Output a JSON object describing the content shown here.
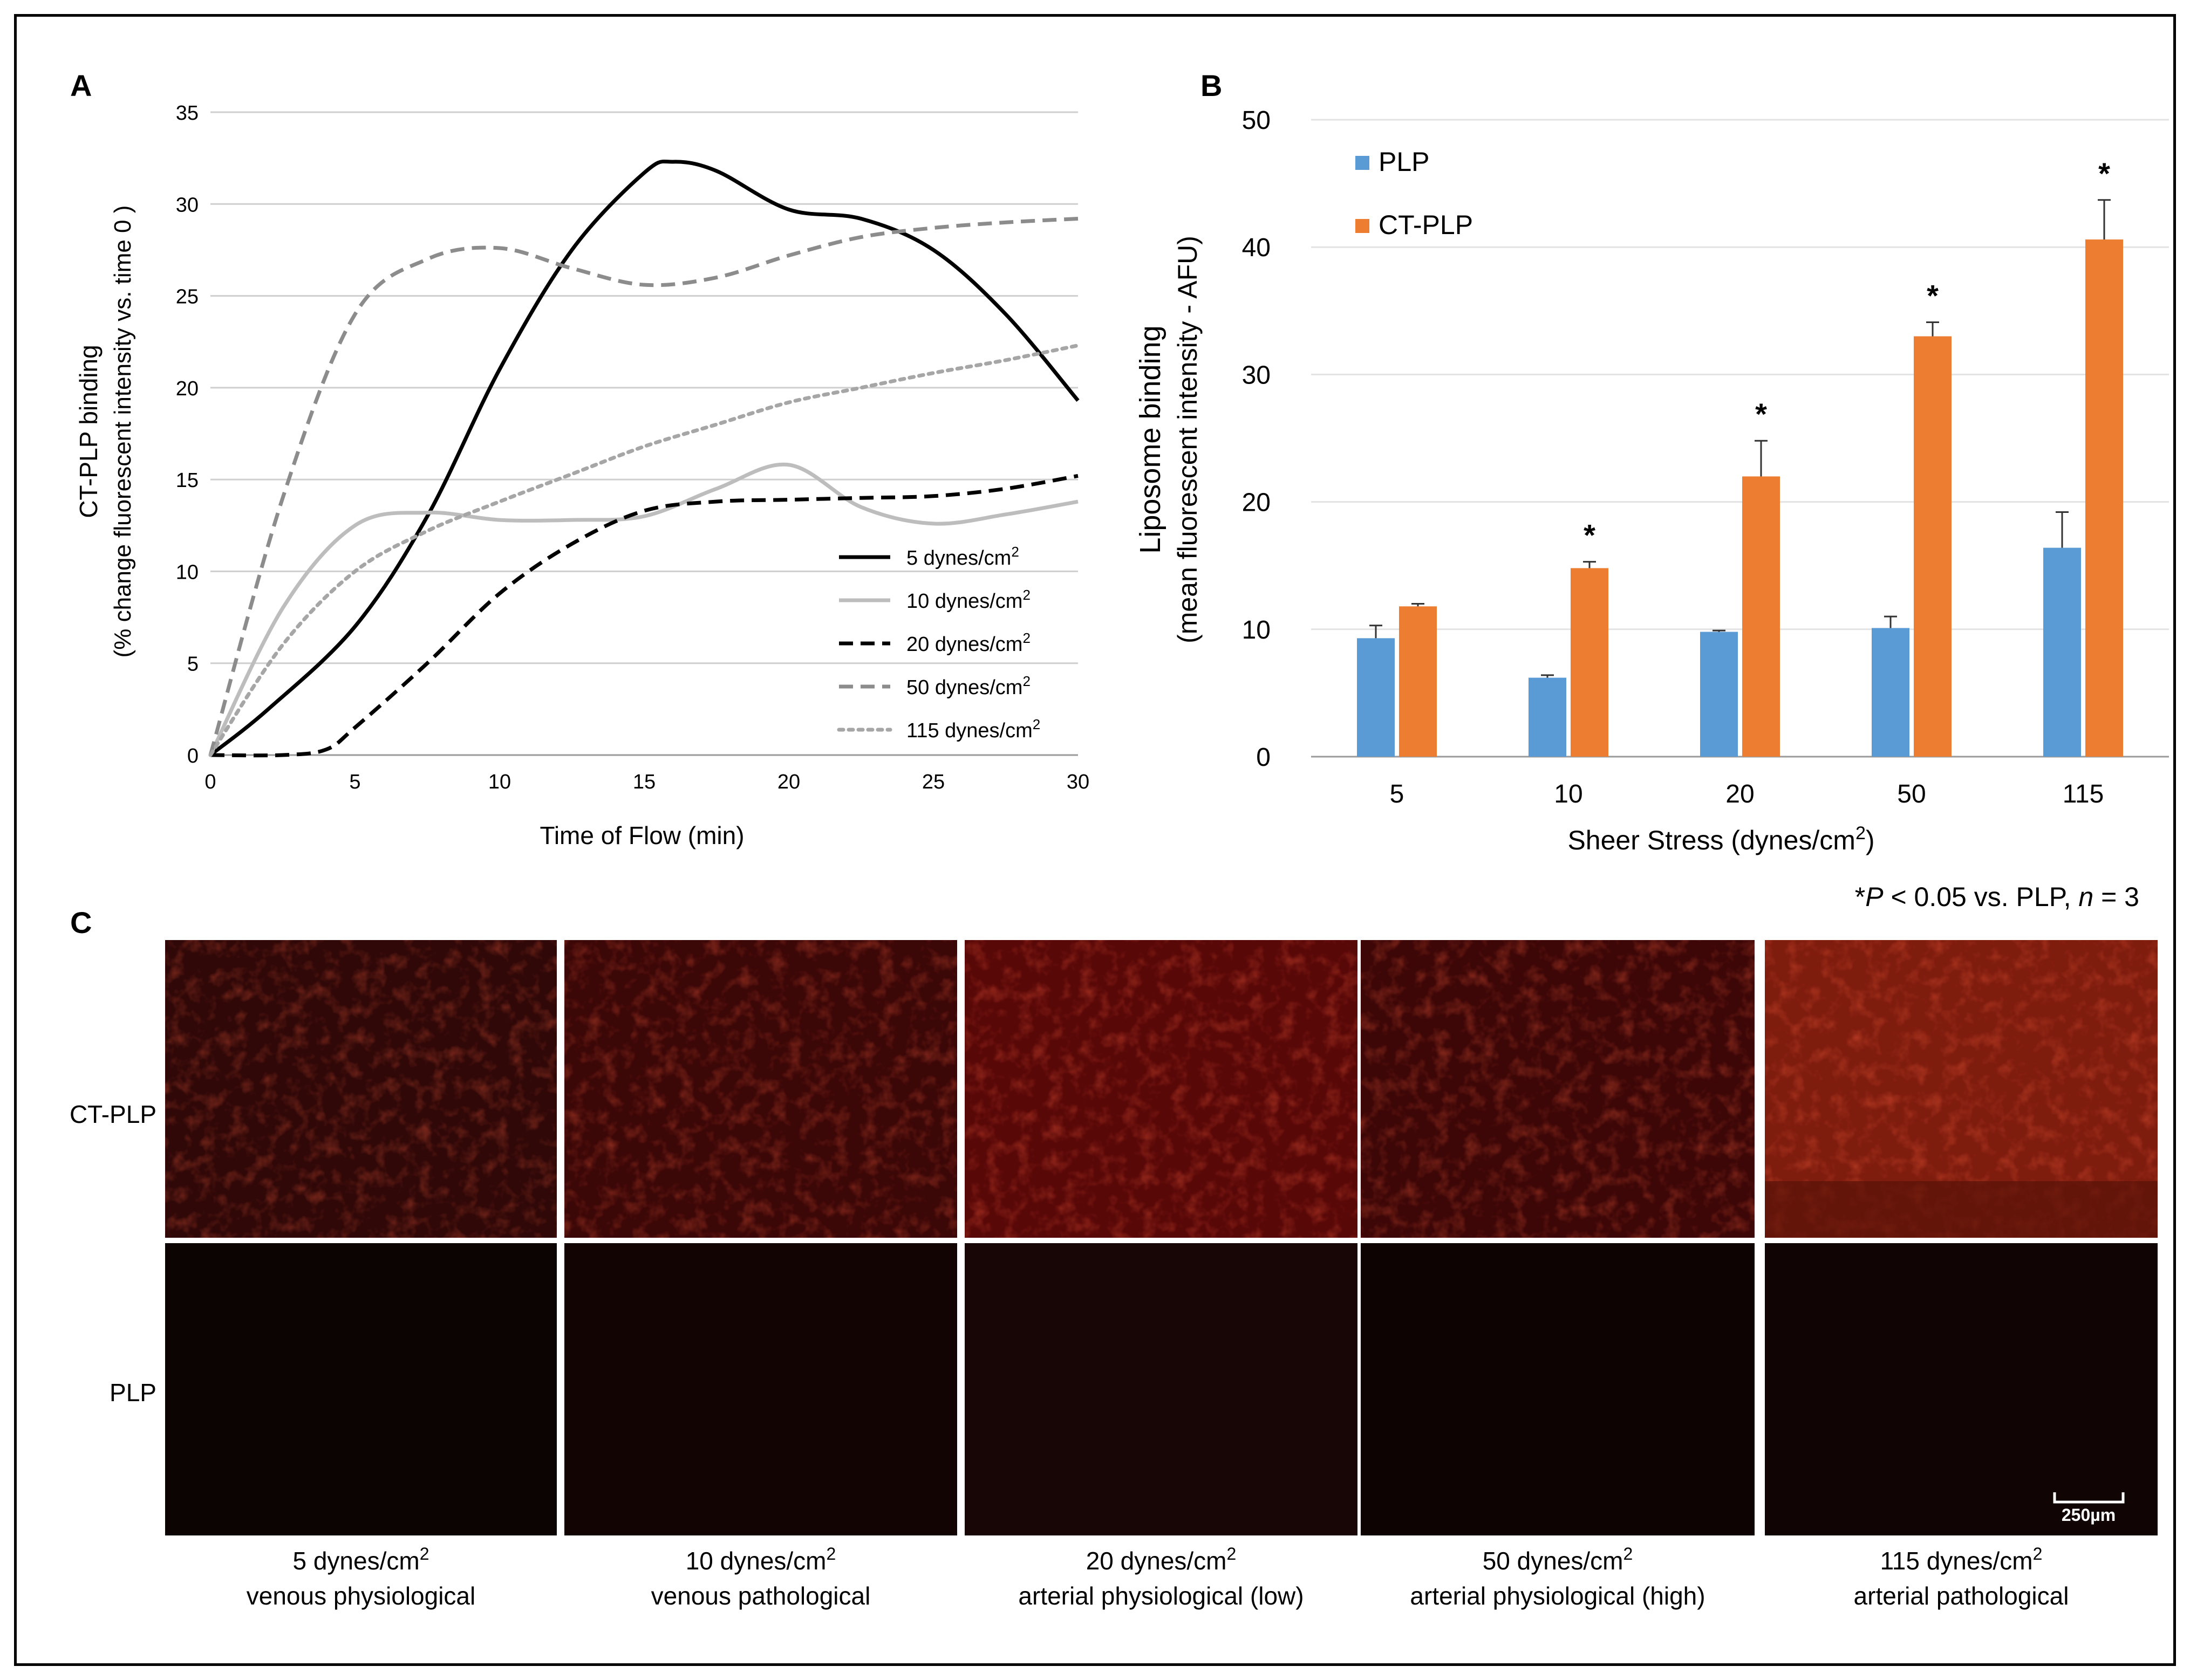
{
  "panel_labels": {
    "a": "A",
    "b": "B",
    "c": "C"
  },
  "chart_data": [
    {
      "panel": "A",
      "type": "line",
      "ylabel_line1": "CT-PLP binding",
      "ylabel_line2": "(% change fluorescent intensity vs. time 0 )",
      "xlabel": "Time of Flow (min)",
      "xlim": [
        0,
        30
      ],
      "ylim": [
        0,
        35
      ],
      "xticks": [
        "0",
        "5",
        "10",
        "15",
        "20",
        "25",
        "30"
      ],
      "yticks": [
        "0",
        "5",
        "10",
        "15",
        "20",
        "25",
        "30",
        "35"
      ],
      "grid": true,
      "legend_position": "bottom-right",
      "legend_unit_superscript": "2",
      "series": [
        {
          "name": "5 dynes/cm",
          "color": "#000000",
          "dash": "solid",
          "x": [
            0,
            2,
            5,
            7.5,
            10,
            12.5,
            15,
            16,
            17.5,
            20,
            22.5,
            25,
            27.5,
            30
          ],
          "y": [
            0,
            2.5,
            7,
            13,
            21,
            27.5,
            31.7,
            32.3,
            31.8,
            29.7,
            29.2,
            27.5,
            24,
            19.3
          ]
        },
        {
          "name": "10 dynes/cm",
          "color": "#bdbdbd",
          "dash": "solid",
          "x": [
            0,
            2.5,
            5,
            7.5,
            10,
            12.5,
            15,
            17.5,
            20,
            22.5,
            25,
            27.5,
            30
          ],
          "y": [
            0,
            8,
            12.5,
            13.2,
            12.8,
            12.8,
            13,
            14.5,
            15.8,
            13.5,
            12.6,
            13.1,
            13.8
          ]
        },
        {
          "name": "20 dynes/cm",
          "color": "#000000",
          "dash": "dashed",
          "x": [
            0,
            2.5,
            4,
            5,
            7.5,
            10,
            12.5,
            15,
            17.5,
            20,
            22.5,
            25,
            27.5,
            30
          ],
          "y": [
            0,
            0,
            0.3,
            1.5,
            5,
            8.8,
            11.5,
            13.3,
            13.8,
            13.9,
            14,
            14.1,
            14.5,
            15.2
          ]
        },
        {
          "name": "50 dynes/cm",
          "color": "#8c8c8c",
          "dash": "dashed",
          "x": [
            0,
            2.5,
            5,
            7.5,
            10,
            12.5,
            15,
            17.5,
            20,
            22.5,
            25,
            27.5,
            30
          ],
          "y": [
            0,
            14,
            24,
            27,
            27.6,
            26.5,
            25.6,
            26,
            27.2,
            28.2,
            28.7,
            29,
            29.2
          ]
        },
        {
          "name": "115 dynes/cm",
          "color": "#a6a6a6",
          "dash": "dotted",
          "x": [
            0,
            2.5,
            5,
            7.5,
            10,
            12.5,
            15,
            17.5,
            20,
            22.5,
            25,
            27.5,
            30
          ],
          "y": [
            0,
            6,
            10,
            12.2,
            13.8,
            15.3,
            16.8,
            18,
            19.2,
            20,
            20.8,
            21.5,
            22.3
          ]
        }
      ]
    },
    {
      "panel": "B",
      "type": "bar",
      "ylabel_line1": "Liposome binding",
      "ylabel_line2": "(mean fluorescent intensity - AFU)",
      "xlabel_main": "Sheer Stress (dynes/cm",
      "xlabel_sup": "2",
      "xlabel_close": ")",
      "ylim": [
        0,
        50
      ],
      "yticks": [
        "0",
        "10",
        "20",
        "30",
        "40",
        "50"
      ],
      "grid": true,
      "legend_position": "top-left",
      "categories": [
        "5",
        "10",
        "20",
        "50",
        "115"
      ],
      "series": [
        {
          "name": "PLP",
          "color": "#5b9bd5",
          "values": [
            9.3,
            6.2,
            9.8,
            10.1,
            16.4
          ],
          "errors": [
            1.0,
            0.2,
            0.1,
            0.9,
            2.8
          ]
        },
        {
          "name": "CT-PLP",
          "color": "#ed7d31",
          "values": [
            11.8,
            14.8,
            22.0,
            33.0,
            40.6
          ],
          "errors": [
            0.2,
            0.5,
            2.8,
            1.1,
            3.1
          ]
        }
      ],
      "significance": [
        "",
        "*",
        "*",
        "*",
        "*"
      ],
      "footnote": {
        "star": "*",
        "p": "P",
        "mid": " < 0.05 vs. PLP, ",
        "n": "n",
        "end": " = 3"
      }
    }
  ],
  "panel_c": {
    "row_labels": [
      "CT-PLP",
      "PLP"
    ],
    "columns": [
      {
        "line1": "5 dynes/cm",
        "sup": "2",
        "line2": "venous physiological"
      },
      {
        "line1": "10 dynes/cm",
        "sup": "2",
        "line2": "venous pathological"
      },
      {
        "line1": "20 dynes/cm",
        "sup": "2",
        "line2": "arterial physiological (low)"
      },
      {
        "line1": "50 dynes/cm",
        "sup": "2",
        "line2": "arterial physiological (high)"
      },
      {
        "line1": "115 dynes/cm",
        "sup": "2",
        "line2": "arterial pathological"
      }
    ],
    "scale_bar": "250µm",
    "tile_colors": {
      "ct_plp": [
        "#300808",
        "#3c0707",
        "#590808",
        "#3e0707",
        "#7e1c0e"
      ],
      "plp": [
        "#0c0303",
        "#130404",
        "#180505",
        "#0e0303",
        "#110404"
      ]
    }
  }
}
